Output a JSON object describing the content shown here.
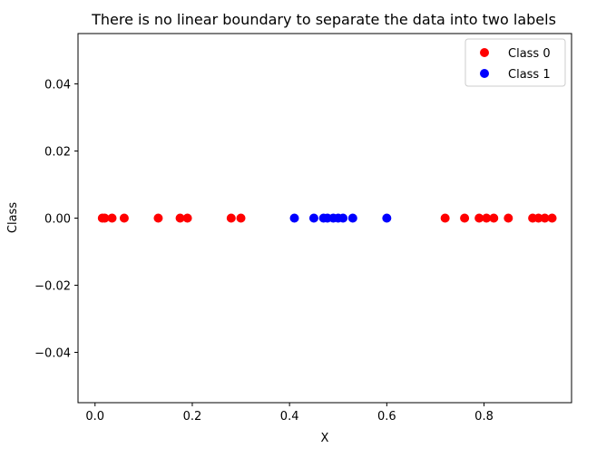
{
  "chart_data": {
    "type": "scatter",
    "title": "There is no linear boundary to separate the data into two labels",
    "xlabel": "X",
    "ylabel": "Class",
    "xlim": [
      -0.035,
      0.98
    ],
    "ylim": [
      -0.055,
      0.055
    ],
    "x_ticks": [
      0.0,
      0.2,
      0.4,
      0.6,
      0.8
    ],
    "x_tick_labels": [
      "0.0",
      "0.2",
      "0.4",
      "0.6",
      "0.8"
    ],
    "y_ticks": [
      0.04,
      0.02,
      0.0,
      -0.02,
      -0.04
    ],
    "y_tick_labels": [
      "0.04",
      "0.02",
      "0.00",
      "−0.02",
      "−0.04"
    ],
    "grid": false,
    "legend_position": "top-right",
    "series": [
      {
        "name": "Class 0",
        "color": "#ff0000",
        "x": [
          0.015,
          0.02,
          0.035,
          0.06,
          0.13,
          0.175,
          0.19,
          0.28,
          0.3,
          0.72,
          0.76,
          0.79,
          0.805,
          0.82,
          0.85,
          0.9,
          0.912,
          0.925,
          0.94
        ],
        "y": [
          0,
          0,
          0,
          0,
          0,
          0,
          0,
          0,
          0,
          0,
          0,
          0,
          0,
          0,
          0,
          0,
          0,
          0,
          0
        ]
      },
      {
        "name": "Class 1",
        "color": "#0000ff",
        "x": [
          0.41,
          0.45,
          0.47,
          0.478,
          0.49,
          0.5,
          0.51,
          0.53,
          0.6
        ],
        "y": [
          0,
          0,
          0,
          0,
          0,
          0,
          0,
          0,
          0
        ]
      }
    ]
  }
}
